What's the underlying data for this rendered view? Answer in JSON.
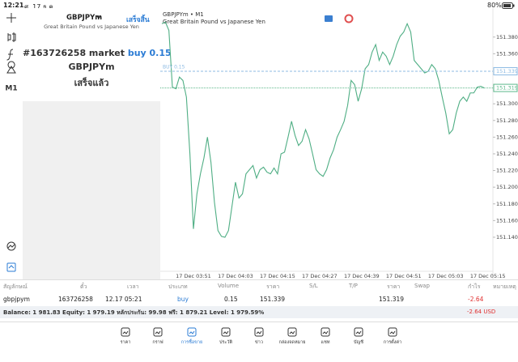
{
  "status_bar": {
    "time": "12:21",
    "date": "ศ. 17 ธ.ค.",
    "battery": "80%"
  },
  "toolbar": {
    "timeframe": "M1"
  },
  "order_panel": {
    "symbol": "GBPJPYm",
    "done": "เสร็จสิ้น",
    "description": "Great Britain Pound vs Japanese Yen",
    "message": {
      "ticket": "#163726258 market",
      "order": "buy 0.15",
      "symbol": "GBPJPYm",
      "status": "เสร็จแล้ว"
    }
  },
  "chart": {
    "type": "line",
    "title": "GBPJPYm • M1",
    "subtitle": "Great Britain Pound vs Japanese Yen",
    "color": "#4fae84",
    "categories": [
      null,
      null,
      null,
      null,
      null,
      null,
      null,
      null,
      null,
      "17 Dec 03:51",
      null,
      null,
      null,
      null,
      null,
      null,
      null,
      null,
      null,
      null,
      null,
      "17 Dec 04:03",
      null,
      null,
      null,
      null,
      null,
      null,
      null,
      null,
      null,
      null,
      null,
      "17 Dec 04:15",
      null,
      null,
      null,
      null,
      null,
      null,
      null,
      null,
      null,
      null,
      null,
      "17 Dec 04:27",
      null,
      null,
      null,
      null,
      null,
      null,
      null,
      null,
      null,
      null,
      null,
      "17 Dec 04:39",
      null,
      null,
      null,
      null,
      null,
      null,
      null,
      null,
      null,
      null,
      null,
      "17 Dec 04:51",
      null,
      null,
      null,
      null,
      null,
      null,
      null,
      null,
      null,
      null,
      null,
      "17 Dec 05:03",
      null,
      null,
      null,
      null,
      null,
      null,
      null,
      null,
      null,
      null,
      null,
      "17 Dec 05:15"
    ],
    "values": [
      151.396,
      151.398,
      151.388,
      151.32,
      151.318,
      151.332,
      151.328,
      151.308,
      151.24,
      151.15,
      151.192,
      151.216,
      151.235,
      151.26,
      151.23,
      151.182,
      151.148,
      151.141,
      151.14,
      151.148,
      151.177,
      151.206,
      151.187,
      151.192,
      151.216,
      151.221,
      151.226,
      151.211,
      151.221,
      151.224,
      151.218,
      151.216,
      151.223,
      151.216,
      151.24,
      151.242,
      151.26,
      151.279,
      151.262,
      151.25,
      151.255,
      151.269,
      151.258,
      151.24,
      151.221,
      151.216,
      151.213,
      151.221,
      151.235,
      151.245,
      151.26,
      151.269,
      151.279,
      151.298,
      151.328,
      151.323,
      151.303,
      151.318,
      151.342,
      151.347,
      151.362,
      151.371,
      151.352,
      151.362,
      151.357,
      151.347,
      151.357,
      151.371,
      151.381,
      151.386,
      151.396,
      151.386,
      151.352,
      151.347,
      151.342,
      151.337,
      151.339,
      151.347,
      151.342,
      151.328,
      151.308,
      151.289,
      151.264,
      151.269,
      151.289,
      151.303,
      151.308,
      151.303,
      151.313,
      151.313,
      151.32,
      151.321,
      151.319,
      null
    ],
    "ylim": [
      151.105,
      151.405
    ],
    "yticks": [
      {
        "value": 151.38,
        "label": "151.380"
      },
      {
        "value": 151.36,
        "label": "151.360"
      },
      {
        "value": 151.3,
        "label": "151.300"
      },
      {
        "value": 151.28,
        "label": "151.280"
      },
      {
        "value": 151.26,
        "label": "151.260"
      },
      {
        "value": 151.24,
        "label": "151.240"
      },
      {
        "value": 151.22,
        "label": "151.220"
      },
      {
        "value": 151.2,
        "label": "151.200"
      },
      {
        "value": 151.18,
        "label": "151.180"
      },
      {
        "value": 151.16,
        "label": "151.160"
      },
      {
        "value": 151.14,
        "label": "151.140"
      }
    ],
    "levels": [
      {
        "label": "BUY 0.15",
        "value": 151.339,
        "color": "#8dbbe3"
      },
      {
        "value": 151.319,
        "color": "#5cb88a"
      }
    ]
  },
  "positions": {
    "headers": [
      "สัญลักษณ์",
      "ตั๋ว",
      "เวลา",
      "ประเภท",
      "Volume",
      "ราคา",
      "S/L",
      "T/P",
      "ราคา",
      "Swap",
      "กำไร",
      "หมายเหตุ"
    ],
    "rows": [
      {
        "symbol": "gbpjpym",
        "ticket": "163726258",
        "time": "12.17 05:21",
        "type": "buy",
        "volume": "0.15",
        "open_price": "151.339",
        "price": "151.319",
        "profit": "-2.64"
      }
    ]
  },
  "summary": {
    "balance": "Balance: 1 981.83 Equity: 1 979.19 หลักประกัน: 99.98 ฟรี: 1 879.21 Level: 1 979.59%",
    "profit": "-2.64",
    "currency": "USD"
  },
  "nav": [
    "ราคา",
    "กราฟ",
    "การซื้อขาย",
    "ประวัติ",
    "ข่าว",
    "กล่องจดหมาย",
    "แชท",
    "บัญชี",
    "การตั้งค่า"
  ]
}
